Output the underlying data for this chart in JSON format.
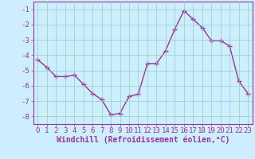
{
  "x": [
    0,
    1,
    2,
    3,
    4,
    5,
    6,
    7,
    8,
    9,
    10,
    11,
    12,
    13,
    14,
    15,
    16,
    17,
    18,
    19,
    20,
    21,
    22,
    23
  ],
  "y": [
    -4.3,
    -4.8,
    -5.4,
    -5.4,
    -5.3,
    -5.9,
    -6.5,
    -6.9,
    -7.9,
    -7.8,
    -6.7,
    -6.55,
    -4.55,
    -4.55,
    -3.7,
    -2.3,
    -1.1,
    -1.65,
    -2.2,
    -3.05,
    -3.05,
    -3.4,
    -5.7,
    -6.5
  ],
  "line_color": "#993399",
  "marker": "+",
  "markersize": 4,
  "linewidth": 1.0,
  "background_color": "#cceeff",
  "grid_color": "#99ccbb",
  "xlabel": "Windchill (Refroidissement éolien,°C)",
  "xlabel_color": "#993399",
  "xlabel_fontsize": 7,
  "ytick_labels": [
    "-1",
    "-2",
    "-3",
    "-4",
    "-5",
    "-6",
    "-7",
    "-8"
  ],
  "ytick_values": [
    -1,
    -2,
    -3,
    -4,
    -5,
    -6,
    -7,
    -8
  ],
  "xtick_values": [
    0,
    1,
    2,
    3,
    4,
    5,
    6,
    7,
    8,
    9,
    10,
    11,
    12,
    13,
    14,
    15,
    16,
    17,
    18,
    19,
    20,
    21,
    22,
    23
  ],
  "ylim": [
    -8.5,
    -0.5
  ],
  "xlim": [
    -0.5,
    23.5
  ],
  "tick_color": "#993399",
  "tick_fontsize": 6.5,
  "axis_color": "#993399",
  "spine_color": "#993399"
}
